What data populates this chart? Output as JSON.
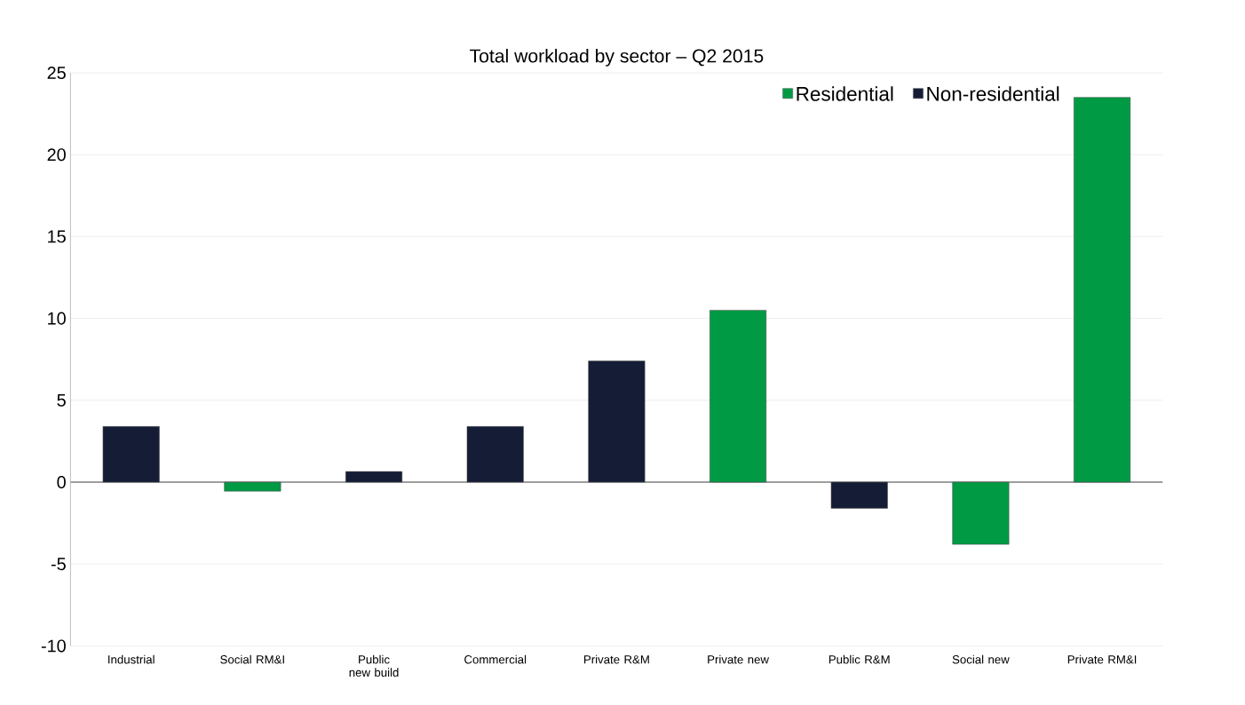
{
  "chart_data": {
    "type": "bar",
    "title": "Total workload by sector – Q2 2015",
    "categories": [
      "Industrial",
      "Social RM&I",
      "Public new build",
      "Commercial",
      "Private R&M",
      "Private new",
      "Public R&M",
      "Social new",
      "Private RM&I"
    ],
    "series": [
      {
        "name": "Residential",
        "color": "#009a44",
        "values": [
          null,
          -0.55,
          null,
          null,
          null,
          10.5,
          null,
          -3.8,
          23.5
        ]
      },
      {
        "name": "Non-residential",
        "color": "#151d36",
        "values": [
          3.4,
          null,
          0.65,
          3.4,
          7.4,
          null,
          -1.6,
          null,
          null
        ]
      }
    ],
    "ylim": [
      -10,
      25
    ],
    "yticks": [
      -10,
      -5,
      0,
      5,
      10,
      15,
      20,
      25
    ],
    "grid": "y",
    "legend": "top right"
  }
}
